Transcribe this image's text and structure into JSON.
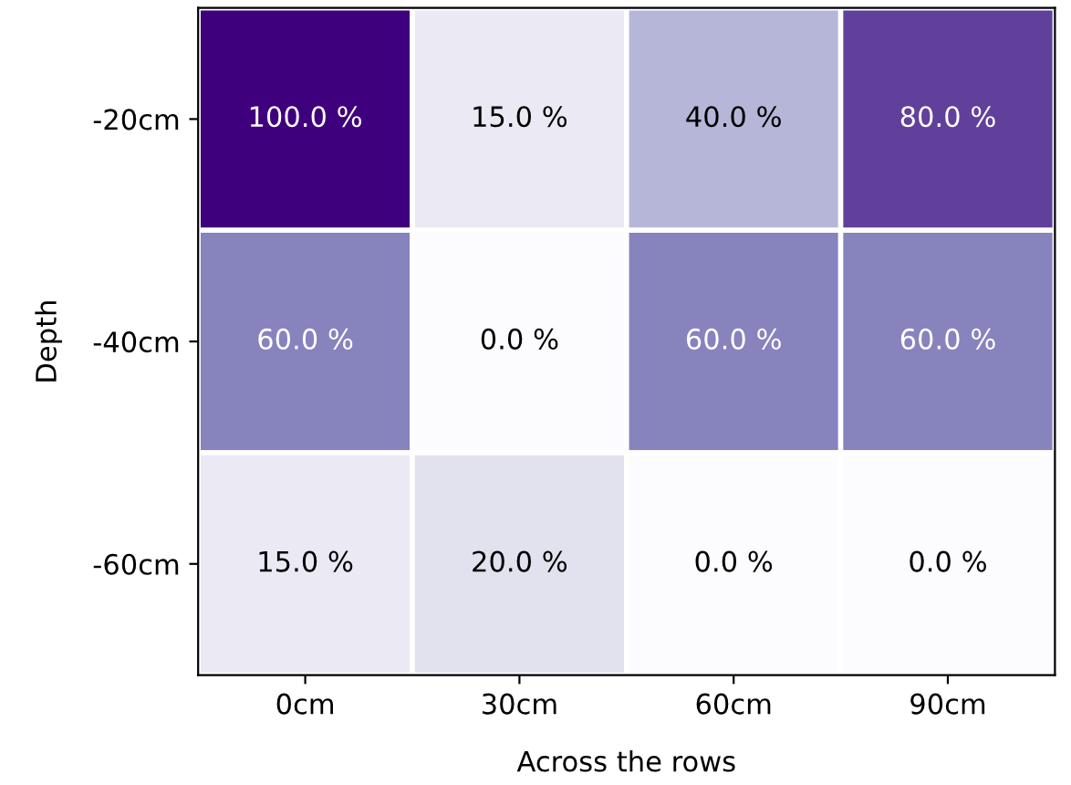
{
  "chart_data": {
    "type": "heatmap",
    "xlabel": "Across the rows",
    "ylabel": "Depth",
    "categories": [
      "0cm",
      "30cm",
      "60cm",
      "90cm"
    ],
    "y_categories": [
      "-20cm",
      "-40cm",
      "-60cm"
    ],
    "cells": [
      [
        100.0,
        15.0,
        40.0,
        80.0
      ],
      [
        60.0,
        0.0,
        60.0,
        60.0
      ],
      [
        15.0,
        20.0,
        0.0,
        0.0
      ]
    ],
    "cell_labels": [
      [
        "100.0 %",
        "15.0 %",
        "40.0 %",
        "80.0 %"
      ],
      [
        "60.0 %",
        "0.0 %",
        "60.0 %",
        "60.0 %"
      ],
      [
        "15.0 %",
        "20.0 %",
        "0.0 %",
        "0.0 %"
      ]
    ]
  }
}
